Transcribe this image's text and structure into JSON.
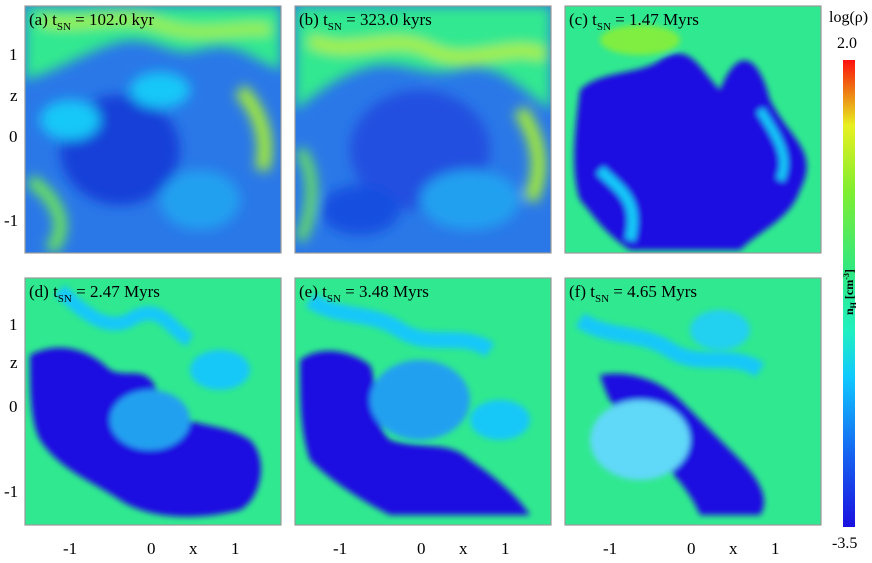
{
  "panels": [
    {
      "id": "a",
      "label_prefix": "(a) t",
      "label_sub": "SN",
      "label_value": " = 102.0 kyr"
    },
    {
      "id": "b",
      "label_prefix": "(b) t",
      "label_sub": "SN",
      "label_value": " = 323.0 kyrs"
    },
    {
      "id": "c",
      "label_prefix": "(c) t",
      "label_sub": "SN",
      "label_value": " = 1.47 Myrs"
    },
    {
      "id": "d",
      "label_prefix": "(d) t",
      "label_sub": "SN",
      "label_value": " = 2.47 Myrs"
    },
    {
      "id": "e",
      "label_prefix": "(e) t",
      "label_sub": "SN",
      "label_value": " = 3.48 Myrs"
    },
    {
      "id": "f",
      "label_prefix": "(f) t",
      "label_sub": "SN",
      "label_value": " = 4.65 Myrs"
    }
  ],
  "axes": {
    "z_label": "z",
    "x_label": "x",
    "z_ticks": [
      "1",
      "0",
      "-1"
    ],
    "x_ticks": [
      "-1",
      "0",
      "1"
    ]
  },
  "colorbar": {
    "title": "log(ρ)",
    "max_label": "2.0",
    "min_label": "-3.5",
    "axis_label_main": "n",
    "axis_label_sub": "H",
    "axis_label_unit": " [cm",
    "axis_label_sup": "-3",
    "axis_label_close": "]",
    "colors": [
      "#1a10e0",
      "#1560f0",
      "#10c8ff",
      "#20f0c0",
      "#30e880",
      "#80ee30",
      "#e8f020",
      "#f06010",
      "#ff1010"
    ]
  }
}
